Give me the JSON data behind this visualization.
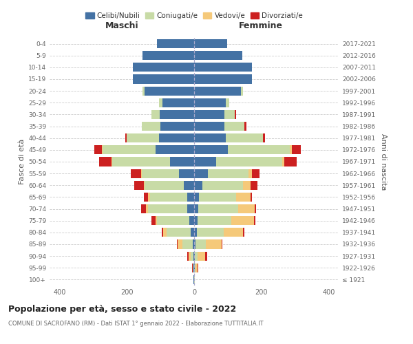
{
  "age_groups": [
    "100+",
    "95-99",
    "90-94",
    "85-89",
    "80-84",
    "75-79",
    "70-74",
    "65-69",
    "60-64",
    "55-59",
    "50-54",
    "45-49",
    "40-44",
    "35-39",
    "30-34",
    "25-29",
    "20-24",
    "15-19",
    "10-14",
    "5-9",
    "0-4"
  ],
  "birth_years": [
    "≤ 1921",
    "1922-1926",
    "1927-1931",
    "1932-1936",
    "1937-1941",
    "1942-1946",
    "1947-1951",
    "1952-1956",
    "1957-1961",
    "1962-1966",
    "1967-1971",
    "1972-1976",
    "1977-1981",
    "1982-1986",
    "1987-1991",
    "1992-1996",
    "1997-2001",
    "2002-2006",
    "2007-2011",
    "2012-2016",
    "2017-2021"
  ],
  "male_celibi": [
    2,
    2,
    3,
    5,
    10,
    15,
    20,
    20,
    30,
    45,
    72,
    115,
    105,
    100,
    102,
    95,
    148,
    183,
    182,
    154,
    110
  ],
  "male_coniugati": [
    1,
    2,
    8,
    30,
    72,
    95,
    118,
    112,
    118,
    110,
    172,
    158,
    95,
    55,
    25,
    10,
    5,
    0,
    0,
    0,
    0
  ],
  "male_vedovi": [
    0,
    0,
    5,
    15,
    10,
    5,
    5,
    5,
    2,
    2,
    2,
    2,
    0,
    0,
    0,
    0,
    0,
    0,
    0,
    0,
    0
  ],
  "male_divorziati": [
    0,
    2,
    5,
    2,
    4,
    12,
    14,
    12,
    28,
    32,
    36,
    22,
    5,
    0,
    0,
    0,
    0,
    0,
    0,
    0,
    0
  ],
  "female_celibi": [
    1,
    2,
    3,
    4,
    8,
    10,
    12,
    15,
    25,
    40,
    65,
    100,
    95,
    90,
    90,
    95,
    140,
    172,
    172,
    143,
    98
  ],
  "female_coniugati": [
    1,
    3,
    8,
    30,
    80,
    100,
    120,
    110,
    120,
    122,
    198,
    185,
    110,
    60,
    30,
    10,
    5,
    0,
    0,
    0,
    0
  ],
  "female_vedovi": [
    1,
    5,
    22,
    48,
    58,
    68,
    48,
    42,
    22,
    10,
    5,
    5,
    0,
    0,
    0,
    0,
    0,
    0,
    0,
    0,
    0
  ],
  "female_divorziati": [
    0,
    2,
    5,
    2,
    3,
    5,
    5,
    5,
    22,
    22,
    38,
    28,
    5,
    5,
    5,
    0,
    0,
    0,
    0,
    0,
    0
  ],
  "color_celibi": "#4472a4",
  "color_coniugati": "#c8dba6",
  "color_vedovi": "#f5c97a",
  "color_divorziati": "#cc2020",
  "title": "Popolazione per età, sesso e stato civile - 2022",
  "subtitle": "COMUNE DI SACROFANO (RM) - Dati ISTAT 1° gennaio 2022 - Elaborazione TUTTITALIA.IT",
  "label_maschi": "Maschi",
  "label_femmine": "Femmine",
  "ylabel_left": "Fasce di età",
  "ylabel_right": "Anni di nascita",
  "legend_labels": [
    "Celibi/Nubili",
    "Coniugati/e",
    "Vedovi/e",
    "Divorziati/e"
  ],
  "xlim": 430,
  "bg_color": "#ffffff",
  "grid_color": "#cccccc"
}
